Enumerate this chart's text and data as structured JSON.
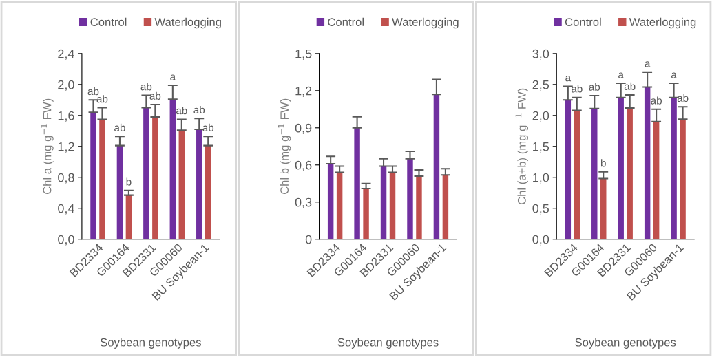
{
  "chart_data": [
    {
      "type": "bar",
      "ylabel": "Chl a (mg g$^{−1}$ FW)",
      "xlabel": "Soybean genotypes",
      "legend": "top",
      "categories": [
        "BD2334",
        "G00164",
        "BD2331",
        "G00060",
        "BU Soybean-1"
      ],
      "ylim": [
        0,
        2.4
      ],
      "yticks": [
        {
          "value": 0,
          "label": "0,0"
        },
        {
          "value": 0.4,
          "label": "0,4"
        },
        {
          "value": 0.8,
          "label": "0,8"
        },
        {
          "value": 1.2,
          "label": "1,2"
        },
        {
          "value": 1.6,
          "label": "1,6"
        },
        {
          "value": 2.0,
          "label": "2,0"
        },
        {
          "value": 2.4,
          "label": "2,4"
        }
      ],
      "series": [
        {
          "name": "Control",
          "color": "#7030a0",
          "values": [
            1.64,
            1.21,
            1.7,
            1.81,
            1.42
          ],
          "errors": [
            [
              1.64,
              1.8
            ],
            [
              1.21,
              1.33
            ],
            [
              1.7,
              1.86
            ],
            [
              1.81,
              1.99
            ],
            [
              1.42,
              1.56
            ]
          ]
        },
        {
          "name": "Waterlogging",
          "color": "#c0504d",
          "values": [
            1.55,
            0.57,
            1.58,
            1.41,
            1.21
          ],
          "errors": [
            [
              1.55,
              1.7
            ],
            [
              0.57,
              0.63
            ],
            [
              1.58,
              1.74
            ],
            [
              1.41,
              1.55
            ],
            [
              1.21,
              1.33
            ]
          ]
        }
      ],
      "annotations": [
        {
          "text": "ab",
          "x": "BD2334",
          "y": 1.8
        },
        {
          "text": "ab",
          "x": "G00164",
          "y": 1.33
        },
        {
          "text": "ab",
          "x": "BD2331",
          "y": 1.86
        },
        {
          "text": "a",
          "x": "G00060",
          "y": 1.99
        },
        {
          "text": "ab",
          "x": "BU Soybean-1",
          "y": 1.56
        },
        {
          "text": "ab",
          "x": "BD2334",
          "y": 1.7
        },
        {
          "text": "b",
          "x": "G00164",
          "y": 0.63
        },
        {
          "text": "ab",
          "x": "BD2331",
          "y": 1.74
        },
        {
          "text": "ab",
          "x": "G00060",
          "y": 1.55
        },
        {
          "text": "ab",
          "x": "BU Soybean-1",
          "y": 1.33
        }
      ]
    },
    {
      "type": "bar",
      "ylabel": "Chl b (mg g$^{−1}$ FW)",
      "xlabel": "Soybean genotypes",
      "legend": "top",
      "categories": [
        "BD2334",
        "G00164",
        "BD2331",
        "G00060",
        "BU Soybean-1"
      ],
      "ylim": [
        0,
        1.5
      ],
      "yticks": [
        0,
        {
          "value": 0.3,
          "label": "0,3"
        },
        {
          "value": 0.6,
          "label": "0,6"
        },
        {
          "value": 0.9,
          "label": "0,9"
        },
        {
          "value": 1.2,
          "label": "1,2"
        },
        {
          "value": 1.5,
          "label": "1,5"
        }
      ],
      "series": [
        {
          "name": "Control",
          "color": "#7030a0",
          "values": [
            0.61,
            0.9,
            0.59,
            0.65,
            1.17
          ],
          "errors": [
            [
              0.61,
              0.67
            ],
            [
              0.9,
              0.99
            ],
            [
              0.59,
              0.65
            ],
            [
              0.65,
              0.71
            ],
            [
              1.17,
              1.29
            ]
          ]
        },
        {
          "name": "Waterlogging",
          "color": "#c0504d",
          "values": [
            0.54,
            0.41,
            0.54,
            0.51,
            0.52
          ],
          "errors": [
            [
              0.54,
              0.59
            ],
            [
              0.41,
              0.45
            ],
            [
              0.54,
              0.59
            ],
            [
              0.51,
              0.56
            ],
            [
              0.52,
              0.57
            ]
          ]
        }
      ]
    },
    {
      "type": "bar",
      "ylabel": "Chl (a+b) (mg g$^{−1}$ FW)",
      "xlabel": "Soybean genotypes",
      "legend": "top",
      "categories": [
        "BD2334",
        "G00164",
        "BD2331",
        "G00060",
        "BU Soybean-1"
      ],
      "ylim": [
        0,
        3.0
      ],
      "yticks": [
        {
          "value": 0,
          "label": "0,0"
        },
        {
          "value": 0.5,
          "label": "0,5"
        },
        {
          "value": 1.0,
          "label": "1,0"
        },
        {
          "value": 1.5,
          "label": "1,5"
        },
        {
          "value": 2.0,
          "label": "2,0"
        },
        {
          "value": 2.5,
          "label": "2,5"
        },
        {
          "value": 3.0,
          "label": "3,0"
        }
      ],
      "series": [
        {
          "name": "Control",
          "color": "#7030a0",
          "values": [
            2.25,
            2.11,
            2.29,
            2.46,
            2.29
          ],
          "errors": [
            [
              2.25,
              2.47
            ],
            [
              2.11,
              2.32
            ],
            [
              2.29,
              2.52
            ],
            [
              2.46,
              2.7
            ],
            [
              2.29,
              2.52
            ]
          ]
        },
        {
          "name": "Waterlogging",
          "color": "#c0504d",
          "values": [
            2.08,
            0.98,
            2.12,
            1.9,
            1.94
          ],
          "errors": [
            [
              2.08,
              2.29
            ],
            [
              0.98,
              1.09
            ],
            [
              2.12,
              2.33
            ],
            [
              1.9,
              2.1
            ],
            [
              1.94,
              2.14
            ]
          ]
        }
      ],
      "annotations": [
        {
          "text": "a",
          "x": "BD2334",
          "y": 2.47
        },
        {
          "text": "ab",
          "x": "G00164",
          "y": 2.32
        },
        {
          "text": "a",
          "x": "BD2331",
          "y": 2.52
        },
        {
          "text": "a",
          "x": "G00060",
          "y": 2.7
        },
        {
          "text": "a",
          "x": "BU Soybean-1",
          "y": 2.52
        },
        {
          "text": "ab",
          "x": "BD2334",
          "y": 2.29
        },
        {
          "text": "b",
          "x": "G00164",
          "y": 1.09
        },
        {
          "text": "ab",
          "x": "BD2331",
          "y": 2.33
        },
        {
          "text": "ab",
          "x": "G00060",
          "y": 2.1
        },
        {
          "text": "ab",
          "x": "BU Soybean-1",
          "y": 2.14
        }
      ]
    }
  ]
}
